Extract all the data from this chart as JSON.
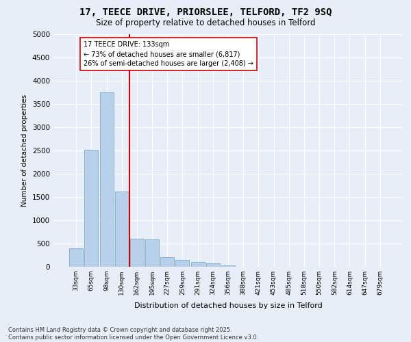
{
  "title_line1": "17, TEECE DRIVE, PRIORSLEE, TELFORD, TF2 9SQ",
  "title_line2": "Size of property relative to detached houses in Telford",
  "xlabel": "Distribution of detached houses by size in Telford",
  "ylabel": "Number of detached properties",
  "categories": [
    "33sqm",
    "65sqm",
    "98sqm",
    "130sqm",
    "162sqm",
    "195sqm",
    "227sqm",
    "259sqm",
    "291sqm",
    "324sqm",
    "356sqm",
    "388sqm",
    "421sqm",
    "453sqm",
    "485sqm",
    "518sqm",
    "550sqm",
    "582sqm",
    "614sqm",
    "647sqm",
    "679sqm"
  ],
  "values": [
    390,
    2520,
    3750,
    1620,
    600,
    590,
    210,
    150,
    100,
    75,
    30,
    0,
    0,
    0,
    0,
    0,
    0,
    0,
    0,
    0,
    0
  ],
  "bar_color": "#b8d0ea",
  "bar_edge_color": "#7aadd4",
  "red_line_x": 3.5,
  "red_line_color": "#cc0000",
  "annotation_text": "17 TEECE DRIVE: 133sqm\n← 73% of detached houses are smaller (6,817)\n26% of semi-detached houses are larger (2,408) →",
  "annotation_box_color": "#ffffff",
  "annotation_box_edge_color": "#cc0000",
  "ylim": [
    0,
    5000
  ],
  "yticks": [
    0,
    500,
    1000,
    1500,
    2000,
    2500,
    3000,
    3500,
    4000,
    4500,
    5000
  ],
  "bg_color": "#e8eef8",
  "plot_bg_color": "#e8eef8",
  "grid_color": "#ffffff",
  "footer_line1": "Contains HM Land Registry data © Crown copyright and database right 2025.",
  "footer_line2": "Contains public sector information licensed under the Open Government Licence v3.0."
}
